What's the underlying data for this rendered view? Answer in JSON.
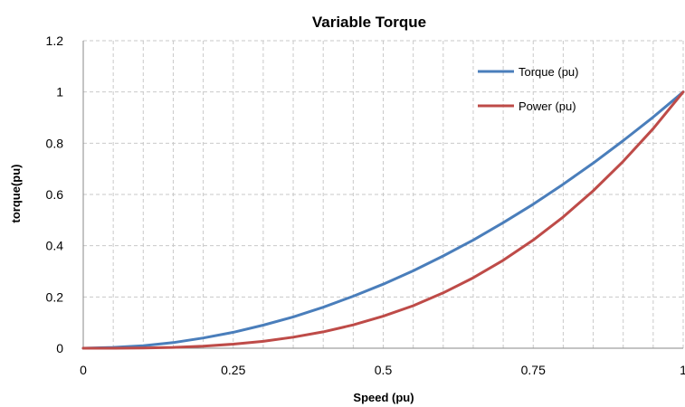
{
  "chart_data": {
    "type": "line",
    "title": "Variable Torque",
    "xlabel": "Speed (pu)",
    "ylabel": "torque(pu)",
    "xlim": [
      0,
      1
    ],
    "ylim": [
      0,
      1.2
    ],
    "x_ticks": [
      "0",
      "0.25",
      "0.5",
      "0.75",
      "1"
    ],
    "y_ticks": [
      "0",
      "0.2",
      "0.4",
      "0.6",
      "0.8",
      "1",
      "1.2"
    ],
    "grid": true,
    "legend_position": "top-right",
    "x": [
      0,
      0.05,
      0.1,
      0.15,
      0.2,
      0.25,
      0.3,
      0.35,
      0.4,
      0.45,
      0.5,
      0.55,
      0.6,
      0.65,
      0.7,
      0.75,
      0.8,
      0.85,
      0.9,
      0.95,
      1.0
    ],
    "series": [
      {
        "name": "Torque (pu)",
        "color": "#4a7ebb",
        "values": [
          0,
          0.003,
          0.01,
          0.022,
          0.04,
          0.062,
          0.09,
          0.122,
          0.16,
          0.203,
          0.25,
          0.302,
          0.36,
          0.422,
          0.49,
          0.562,
          0.64,
          0.722,
          0.81,
          0.902,
          1.0
        ]
      },
      {
        "name": "Power (pu)",
        "color": "#be4b48",
        "values": [
          0,
          0,
          0.001,
          0.003,
          0.008,
          0.016,
          0.027,
          0.043,
          0.064,
          0.091,
          0.125,
          0.166,
          0.216,
          0.275,
          0.343,
          0.422,
          0.512,
          0.614,
          0.729,
          0.857,
          1.0
        ]
      }
    ]
  }
}
